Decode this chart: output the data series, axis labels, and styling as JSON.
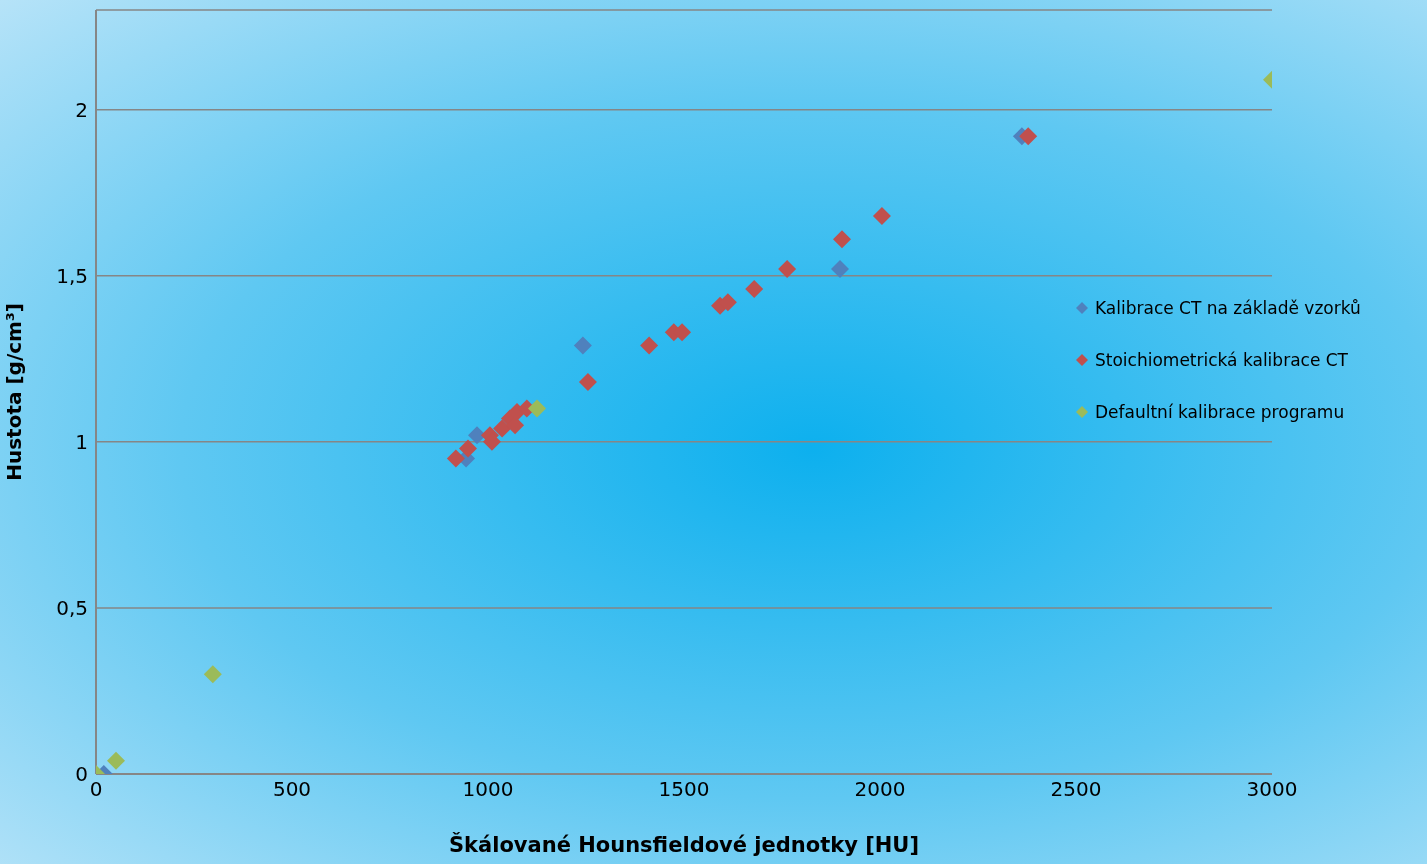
{
  "chart_data": {
    "type": "scatter",
    "xlabel": "Škálované Hounsfieldové jednotky [HU]",
    "ylabel": "Hustota [g/cm³]",
    "xlim": [
      0,
      3000
    ],
    "xticks": [
      0,
      500,
      1000,
      1500,
      2000,
      2500,
      3000
    ],
    "ylim": [
      0,
      2.3
    ],
    "yticks": [
      0,
      {
        "value": 0.5,
        "label": "0,5"
      },
      1,
      {
        "value": 1.5,
        "label": "1,5"
      },
      2
    ],
    "grid": "y",
    "legend": "right",
    "marker": "diamond",
    "series": [
      {
        "name": "Kalibrace CT na základě vzorků",
        "color": "#4f81bd",
        "x": [
          20,
          944,
          972,
          1242,
          1898,
          2362
        ],
        "values": [
          0,
          0.95,
          1.02,
          1.29,
          1.52,
          1.92
        ]
      },
      {
        "name": "Stoichiometrická kalibrace CT",
        "color": "#c0504d",
        "x": [
          918,
          949,
          1005,
          1010,
          1036,
          1056,
          1069,
          1074,
          1099,
          1255,
          1411,
          1474,
          1495,
          1592,
          1612,
          1679,
          1763,
          1903,
          2005,
          2378
        ],
        "values": [
          0.95,
          0.98,
          1.02,
          1.0,
          1.04,
          1.07,
          1.05,
          1.09,
          1.1,
          1.18,
          1.29,
          1.33,
          1.33,
          1.41,
          1.42,
          1.46,
          1.52,
          1.61,
          1.68,
          1.92
        ]
      },
      {
        "name": "Defaultní kalibrace programu",
        "color": "#9bbb59",
        "x": [
          0,
          51,
          298,
          1125,
          3000
        ],
        "values": [
          0,
          0.04,
          0.3,
          1.1,
          2.09
        ]
      }
    ]
  }
}
